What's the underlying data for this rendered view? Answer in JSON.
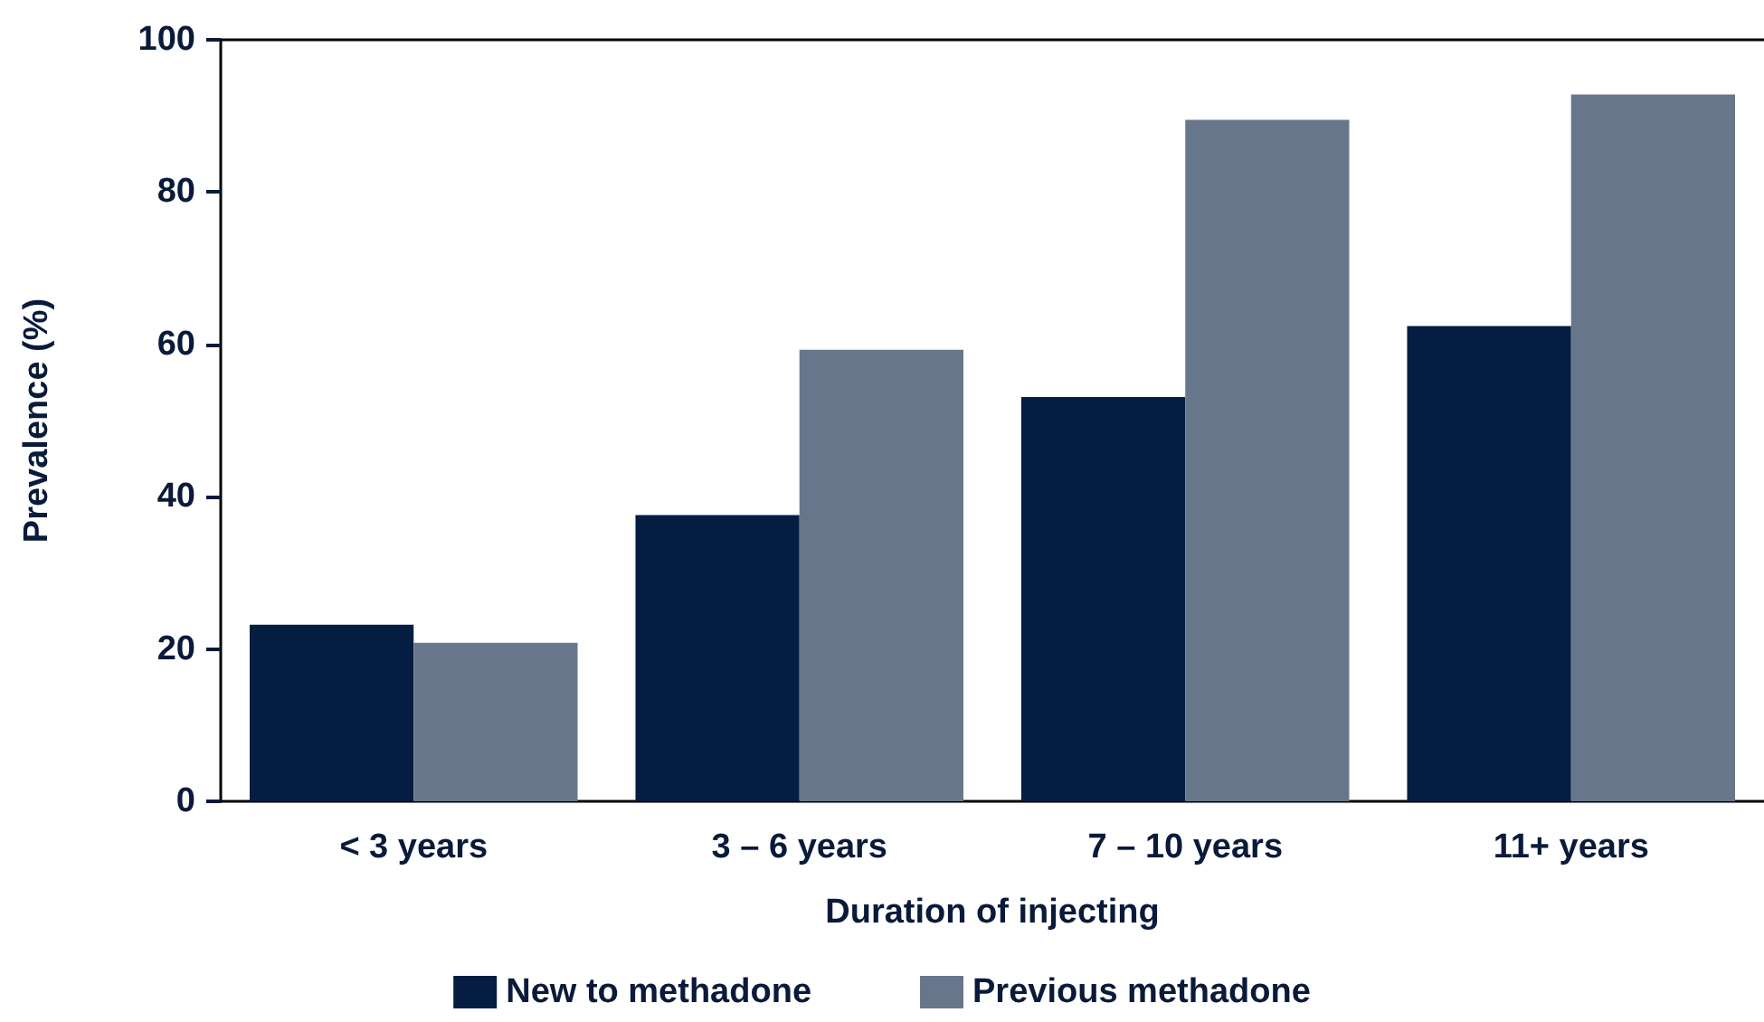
{
  "chart_data": {
    "type": "bar",
    "xlabel": "Duration of injecting",
    "ylabel": "Prevalence (%)",
    "categories": [
      "< 3 years",
      "3 – 6 years",
      "7 – 10 years",
      "11+ years"
    ],
    "series": [
      {
        "name": "New to methadone",
        "color": "#061d42",
        "values": [
          23.2,
          37.6,
          53.1,
          62.4
        ]
      },
      {
        "name": "Previous methadone",
        "color": "#68768c",
        "values": [
          20.8,
          59.3,
          89.5,
          92.8
        ]
      }
    ],
    "ylim": [
      0,
      100
    ],
    "yticks": [
      0,
      20,
      40,
      60,
      80,
      100
    ],
    "grid": false,
    "legend": "bottom"
  }
}
